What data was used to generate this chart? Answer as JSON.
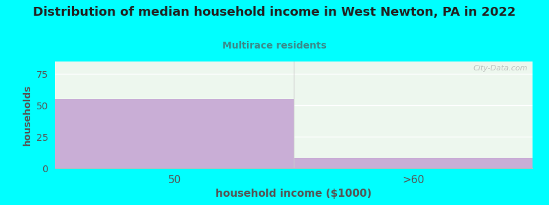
{
  "title": "Distribution of median household income in West Newton, PA in 2022",
  "subtitle": "Multirace residents",
  "xlabel": "household income ($1000)",
  "ylabel": "households",
  "categories": [
    "50",
    ">60"
  ],
  "values": [
    55,
    8
  ],
  "bar_color": "#c9aed6",
  "bg_color": "#00ffff",
  "plot_bg_color": "#edf7ee",
  "ylim": [
    0,
    85
  ],
  "yticks": [
    0,
    25,
    50,
    75
  ],
  "title_color": "#222222",
  "subtitle_color": "#3a8a8a",
  "xlabel_color": "#555555",
  "ylabel_color": "#555555",
  "watermark": "City-Data.com",
  "title_fontsize": 13,
  "subtitle_fontsize": 10,
  "xlabel_fontsize": 11,
  "ylabel_fontsize": 10
}
